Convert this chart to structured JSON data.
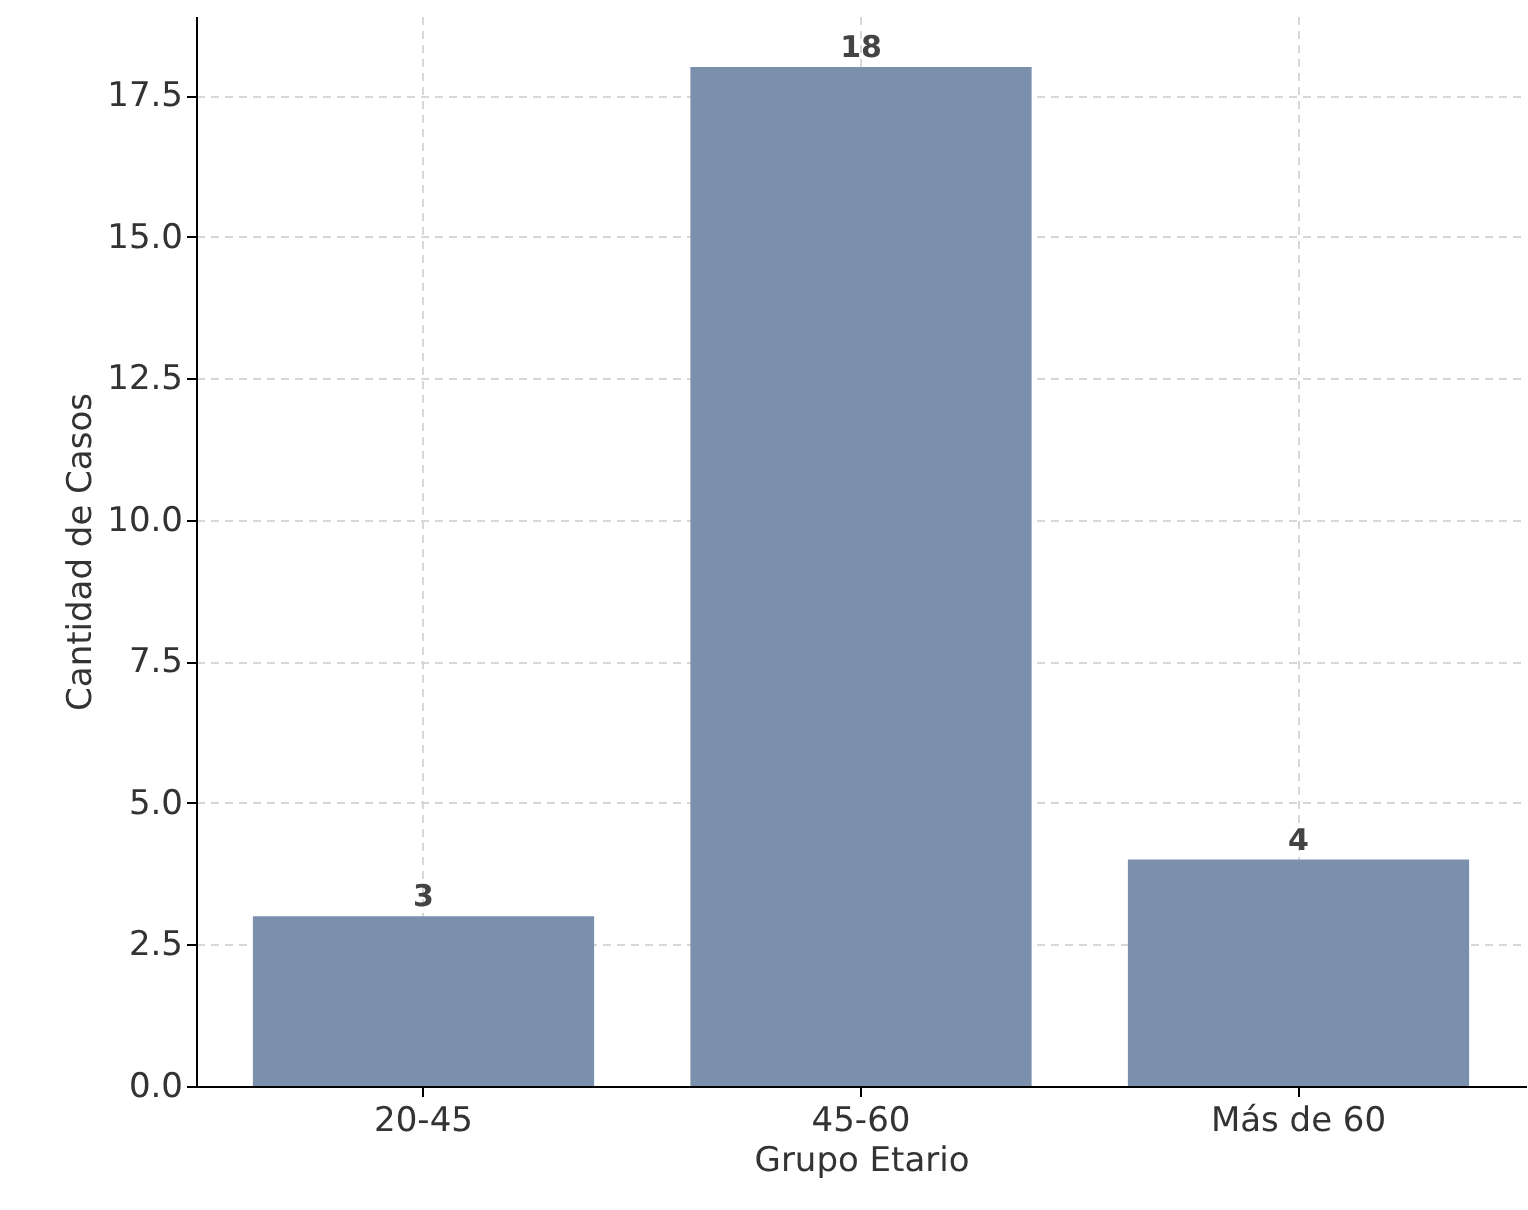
{
  "chart_data": {
    "type": "bar",
    "xlabel": "Grupo Etario",
    "ylabel": "Cantidad de Casos",
    "categories": [
      "20-45",
      "45-60",
      "Más de 60"
    ],
    "values": [
      3,
      18,
      4
    ],
    "color": "#7a90ad",
    "ylim": [
      0,
      18.9
    ],
    "yticks": [
      {
        "value": 0,
        "label": "0.0"
      },
      {
        "value": 2.5,
        "label": "2.5"
      },
      {
        "value": 5,
        "label": "5.0"
      },
      {
        "value": 7.5,
        "label": "7.5"
      },
      {
        "value": 10,
        "label": "10.0"
      },
      {
        "value": 12.5,
        "label": "12.5"
      },
      {
        "value": 15,
        "label": "15.0"
      },
      {
        "value": 17.5,
        "label": "17.5"
      }
    ],
    "grid": true,
    "data_labels": true
  }
}
